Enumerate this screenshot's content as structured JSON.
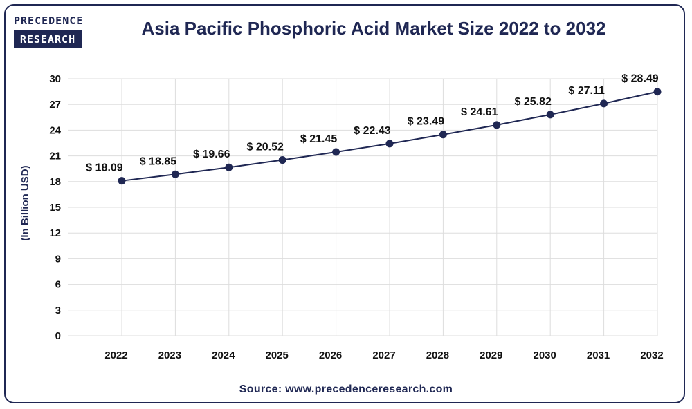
{
  "logo": {
    "line1": "PRECEDENCE",
    "line2": "RESEARCH"
  },
  "source": "Source: www.precedenceresearch.com",
  "colors": {
    "primary": "#1f2753",
    "grid": "#dddddd"
  },
  "chart_data": {
    "type": "line",
    "title": "Asia Pacific Phosphoric Acid Market Size 2022 to 2032",
    "xlabel": "",
    "ylabel": "(In Billion USD)",
    "x": [
      "2022",
      "2023",
      "2024",
      "2025",
      "2026",
      "2027",
      "2028",
      "2029",
      "2030",
      "2031",
      "2032"
    ],
    "values": [
      18.09,
      18.85,
      19.66,
      20.52,
      21.45,
      22.43,
      23.49,
      24.61,
      25.82,
      27.11,
      28.49
    ],
    "data_labels": [
      "$ 18.09",
      "$ 18.85",
      "$ 19.66",
      "$ 20.52",
      "$ 21.45",
      "$ 22.43",
      "$ 23.49",
      "$ 24.61",
      "$ 25.82",
      "$ 27.11",
      "$ 28.49"
    ],
    "yticks": [
      0,
      3,
      6,
      9,
      12,
      15,
      18,
      21,
      24,
      27,
      30
    ],
    "ylim": [
      0,
      30
    ],
    "grid": true,
    "legend": "none"
  }
}
